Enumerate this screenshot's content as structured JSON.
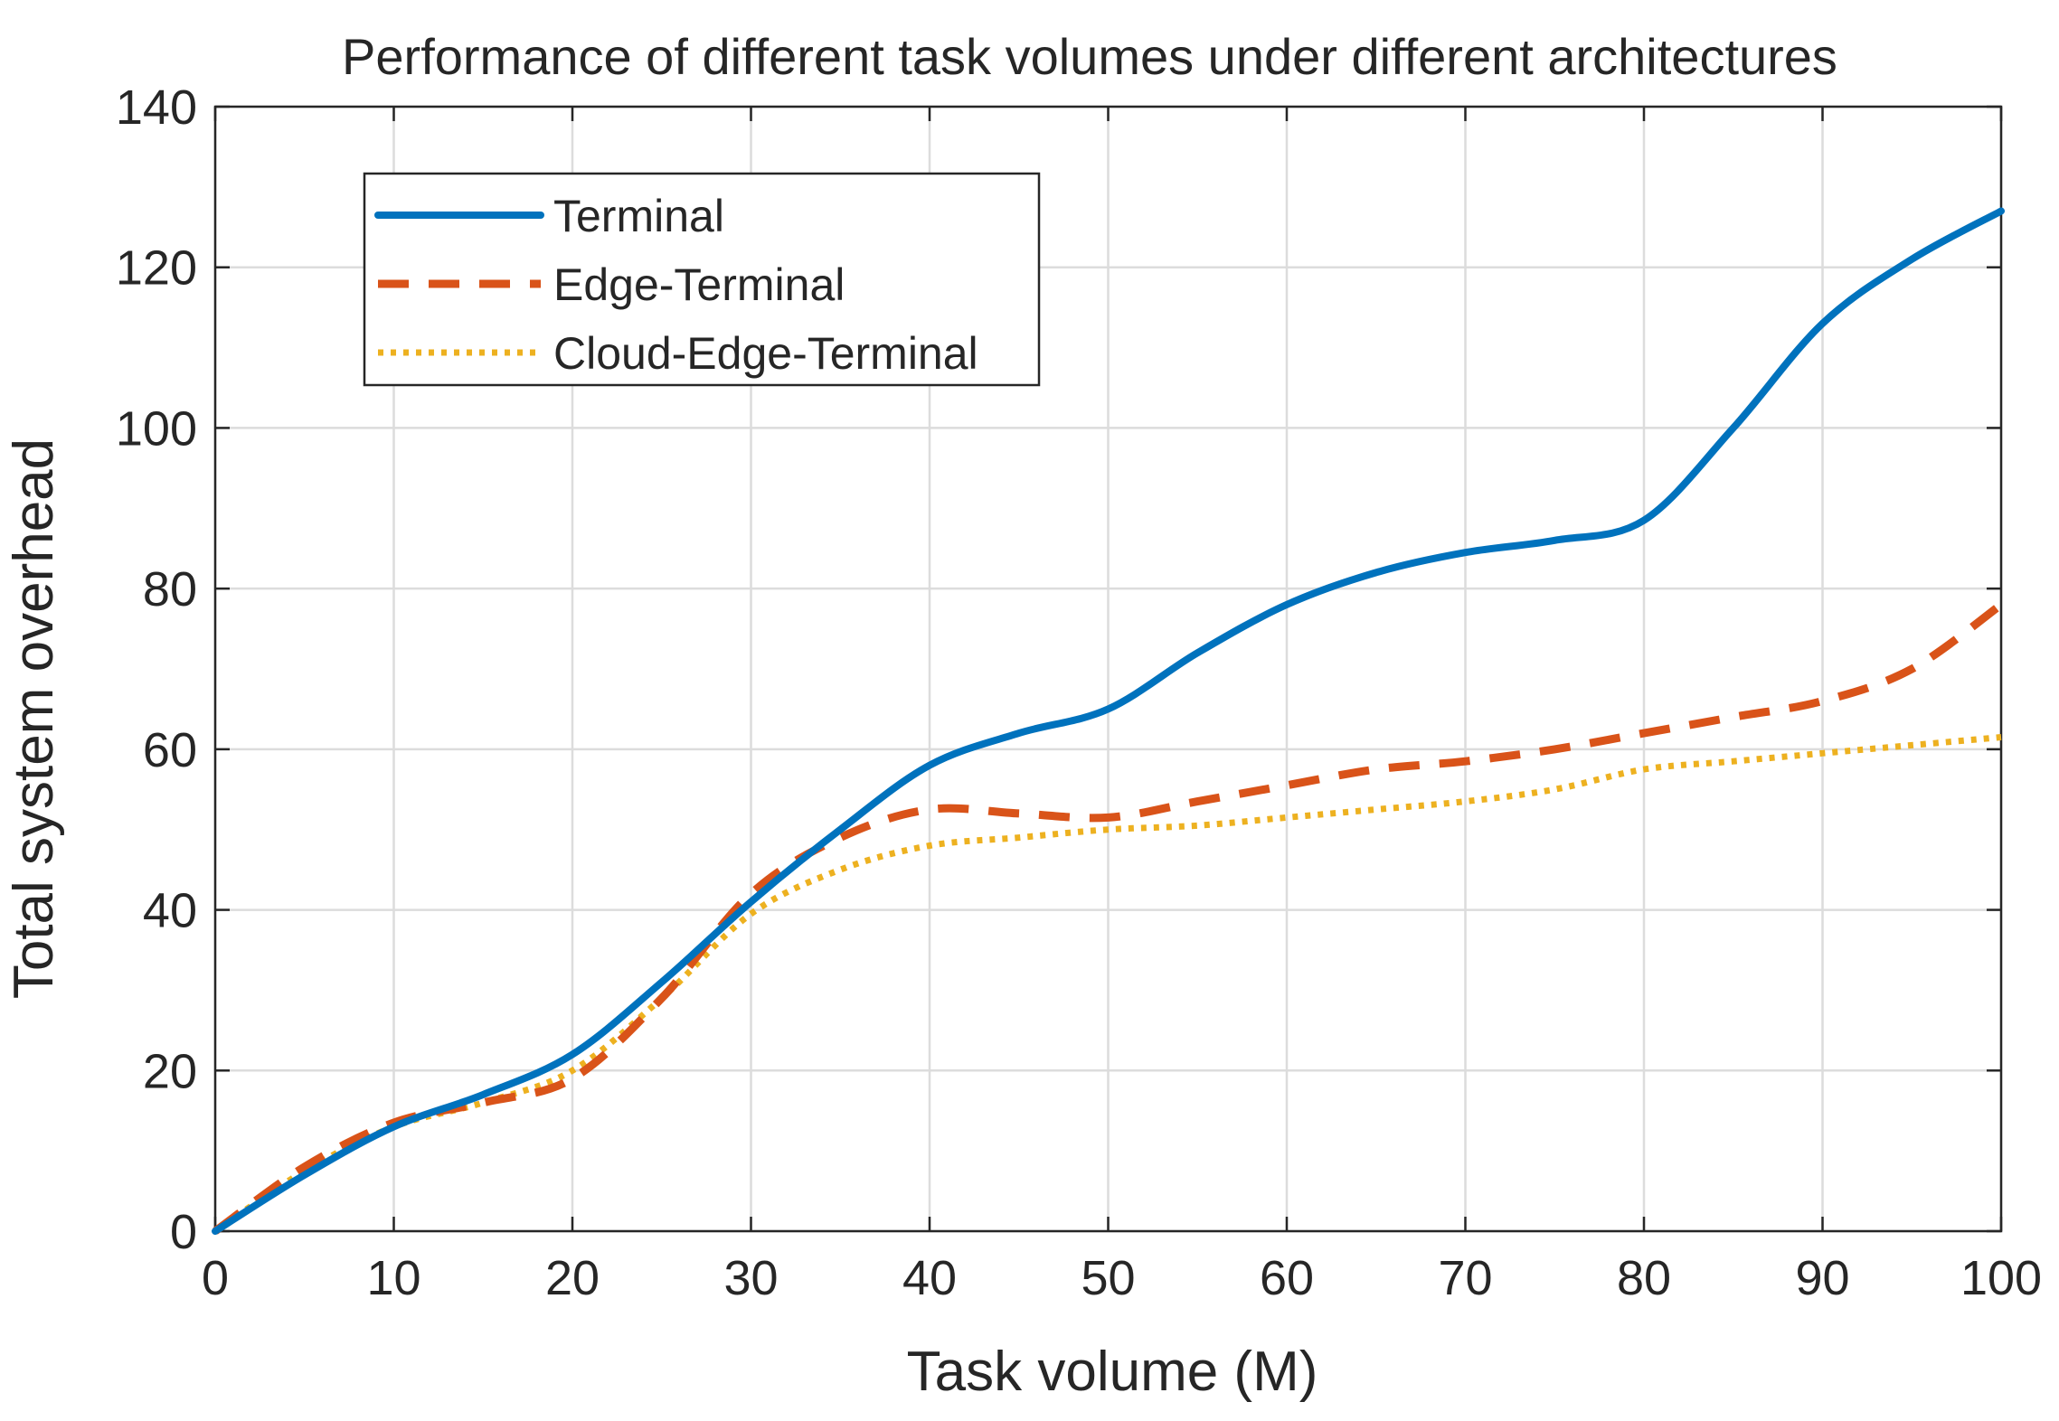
{
  "chart_data": {
    "type": "line",
    "title": "Performance of different task volumes under different architectures",
    "xlabel": "Task volume (M)",
    "ylabel": "Total system overhead",
    "xlim": [
      0,
      100
    ],
    "ylim": [
      0,
      140
    ],
    "xticks": [
      0,
      10,
      20,
      30,
      40,
      50,
      60,
      70,
      80,
      90,
      100
    ],
    "yticks": [
      0,
      20,
      40,
      60,
      80,
      100,
      120,
      140
    ],
    "grid": true,
    "legend_position": "top-left",
    "x": [
      0,
      5,
      10,
      15,
      20,
      25,
      30,
      35,
      40,
      45,
      50,
      55,
      60,
      65,
      70,
      75,
      80,
      85,
      90,
      95,
      100
    ],
    "series": [
      {
        "name": "Terminal",
        "color": "#0072BD",
        "style": "solid",
        "values": [
          0,
          7,
          13,
          17,
          22,
          31,
          41,
          50,
          58,
          62,
          65,
          72,
          78,
          82,
          84.5,
          86,
          88.5,
          100,
          113,
          121,
          127
        ]
      },
      {
        "name": "Edge-Terminal",
        "color": "#D95319",
        "style": "dashed",
        "values": [
          0,
          8,
          13.5,
          16,
          19,
          29,
          42,
          49,
          52.5,
          52,
          51.5,
          53.5,
          55.5,
          57.5,
          58.5,
          60,
          62,
          64,
          66,
          70,
          78
        ]
      },
      {
        "name": "Cloud-Edge-Terminal",
        "color": "#EDB120",
        "style": "dotted",
        "values": [
          0,
          7.5,
          13,
          16,
          20,
          29,
          39.5,
          45,
          48,
          49,
          50,
          50.5,
          51.5,
          52.5,
          53.5,
          55,
          57.5,
          58.5,
          59.5,
          60.5,
          61.5
        ]
      }
    ]
  }
}
